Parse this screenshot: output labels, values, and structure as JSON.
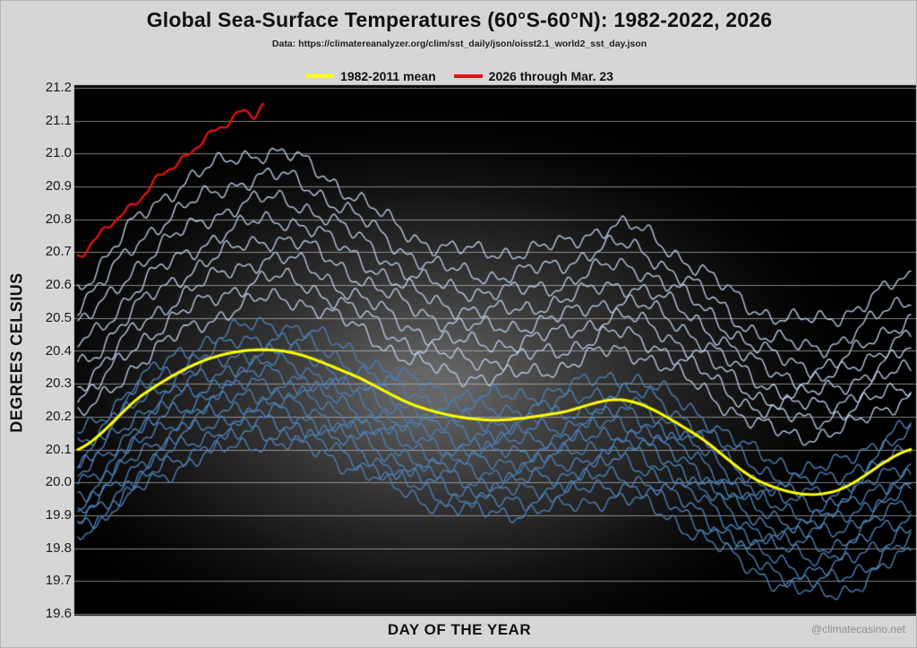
{
  "chart_data": {
    "type": "line",
    "title": "Global Sea-Surface Temperatures (60°S-60°N): 1982-2022, 2026",
    "subtitle": "Data: https://climatereanalyzer.org/clim/sst_daily/json/oisst2.1_world2_sst_day.json",
    "xlabel": "DAY OF THE YEAR",
    "ylabel": "DEGREES CELSIUS",
    "watermark": "@climatecasino.net",
    "ylim": [
      19.6,
      21.2
    ],
    "ytick_step": 0.1,
    "xlim": [
      1,
      365
    ],
    "grid": "horizontal",
    "legend_position": "top-center",
    "colors": {
      "mean": "#ffff00",
      "current": "#dd1111",
      "year_dark": "#4d7fb3",
      "year_light": "#b6c7df",
      "gridline": "#bdbdbd",
      "plot_background": "#000000",
      "plot_glow": "#787878",
      "page_background": "#d6d6d6"
    },
    "legend": [
      {
        "label": "1982-2011 mean",
        "color": "#ffff00"
      },
      {
        "label": "2026 through Mar. 23",
        "color": "#dd1111"
      }
    ],
    "keypoint_days": [
      1,
      30,
      60,
      90,
      120,
      150,
      180,
      210,
      240,
      270,
      300,
      330,
      365
    ],
    "series": [
      {
        "name": "1982-2011 mean",
        "role": "mean",
        "color": "#ffff00",
        "line_width": 3,
        "values": [
          20.1,
          20.27,
          20.38,
          20.4,
          20.33,
          20.23,
          20.19,
          20.21,
          20.25,
          20.15,
          20.0,
          19.97,
          20.1
        ]
      },
      {
        "name": "2026 through Mar. 23",
        "role": "current",
        "color": "#dd1111",
        "line_width": 2.4,
        "days": [
          1,
          8,
          15,
          22,
          29,
          36,
          43,
          50,
          57,
          64,
          71,
          78,
          82
        ],
        "values": [
          20.68,
          20.73,
          20.79,
          20.83,
          20.87,
          20.92,
          20.96,
          21.0,
          21.06,
          21.08,
          21.12,
          21.11,
          21.15
        ]
      },
      {
        "name": "year-line-01",
        "role": "year",
        "shade": "light",
        "color": "#b6c7df",
        "line_width": 1.4,
        "values": [
          20.6,
          20.82,
          20.96,
          21.0,
          20.88,
          20.74,
          20.7,
          20.72,
          20.78,
          20.66,
          20.52,
          20.5,
          20.62
        ]
      },
      {
        "name": "year-line-02",
        "role": "year",
        "shade": "light",
        "color": "#b6c7df",
        "line_width": 1.4,
        "values": [
          20.54,
          20.75,
          20.88,
          20.93,
          20.82,
          20.68,
          20.63,
          20.66,
          20.72,
          20.6,
          20.45,
          20.42,
          20.56
        ]
      },
      {
        "name": "year-line-03",
        "role": "year",
        "shade": "light",
        "color": "#b6c7df",
        "line_width": 1.4,
        "values": [
          20.48,
          20.68,
          20.81,
          20.86,
          20.76,
          20.62,
          20.58,
          20.6,
          20.66,
          20.55,
          20.4,
          20.36,
          20.5
        ]
      },
      {
        "name": "year-line-04",
        "role": "year",
        "shade": "light",
        "color": "#b6c7df",
        "line_width": 1.4,
        "values": [
          20.42,
          20.61,
          20.74,
          20.8,
          20.7,
          20.57,
          20.52,
          20.55,
          20.6,
          20.5,
          20.35,
          20.32,
          20.45
        ]
      },
      {
        "name": "year-line-05",
        "role": "year",
        "shade": "light",
        "color": "#b6c7df",
        "line_width": 1.4,
        "values": [
          20.36,
          20.55,
          20.68,
          20.74,
          20.64,
          20.52,
          20.47,
          20.5,
          20.55,
          20.45,
          20.3,
          20.28,
          20.4
        ]
      },
      {
        "name": "year-line-06",
        "role": "year",
        "shade": "light",
        "color": "#b6c7df",
        "line_width": 1.4,
        "values": [
          20.3,
          20.49,
          20.62,
          20.68,
          20.58,
          20.46,
          20.42,
          20.45,
          20.5,
          20.4,
          20.26,
          20.24,
          20.35
        ]
      },
      {
        "name": "year-line-07",
        "role": "year",
        "shade": "light",
        "color": "#b6c7df",
        "line_width": 1.4,
        "values": [
          20.25,
          20.44,
          20.56,
          20.62,
          20.53,
          20.41,
          20.37,
          20.4,
          20.45,
          20.35,
          20.22,
          20.2,
          20.3
        ]
      },
      {
        "name": "year-line-08",
        "role": "year",
        "shade": "light",
        "color": "#b6c7df",
        "line_width": 1.4,
        "values": [
          20.2,
          20.38,
          20.5,
          20.56,
          20.48,
          20.36,
          20.32,
          20.35,
          20.4,
          20.3,
          20.17,
          20.15,
          20.26
        ]
      },
      {
        "name": "year-line-09",
        "role": "year",
        "shade": "dark",
        "color": "#4d7fb3",
        "line_width": 1.4,
        "values": [
          20.15,
          20.32,
          20.44,
          20.48,
          20.4,
          20.3,
          20.26,
          20.28,
          20.32,
          20.22,
          20.08,
          20.05,
          20.18
        ]
      },
      {
        "name": "year-line-10",
        "role": "year",
        "shade": "dark",
        "color": "#4d7fb3",
        "line_width": 1.4,
        "values": [
          20.12,
          20.29,
          20.4,
          20.44,
          20.36,
          20.26,
          20.22,
          20.24,
          20.28,
          20.18,
          20.04,
          20.01,
          20.14
        ]
      },
      {
        "name": "year-line-11",
        "role": "year",
        "shade": "dark",
        "color": "#4d7fb3",
        "line_width": 1.4,
        "values": [
          20.08,
          20.26,
          20.36,
          20.4,
          20.32,
          20.22,
          20.18,
          20.2,
          20.24,
          20.14,
          20.0,
          19.97,
          20.1
        ]
      },
      {
        "name": "year-line-12",
        "role": "year",
        "shade": "dark",
        "color": "#4d7fb3",
        "line_width": 1.4,
        "values": [
          20.05,
          20.22,
          20.33,
          20.36,
          20.29,
          20.19,
          20.15,
          20.17,
          20.21,
          20.11,
          19.97,
          19.94,
          20.06
        ]
      },
      {
        "name": "year-line-13",
        "role": "year",
        "shade": "dark",
        "color": "#4d7fb3",
        "line_width": 1.4,
        "values": [
          20.02,
          20.19,
          20.3,
          20.33,
          20.26,
          20.16,
          20.12,
          20.14,
          20.18,
          20.08,
          19.94,
          19.91,
          20.03
        ]
      },
      {
        "name": "year-line-14",
        "role": "year",
        "shade": "dark",
        "color": "#4d7fb3",
        "line_width": 1.4,
        "values": [
          19.99,
          20.16,
          20.27,
          20.3,
          20.23,
          20.13,
          20.09,
          20.11,
          20.15,
          20.05,
          19.91,
          19.88,
          20.0
        ]
      },
      {
        "name": "year-line-15",
        "role": "year",
        "shade": "dark",
        "color": "#4d7fb3",
        "line_width": 1.4,
        "values": [
          19.96,
          20.13,
          20.24,
          20.27,
          20.2,
          20.1,
          20.06,
          20.08,
          20.12,
          20.02,
          19.88,
          19.85,
          19.97
        ]
      },
      {
        "name": "year-line-16",
        "role": "year",
        "shade": "dark",
        "color": "#4d7fb3",
        "line_width": 1.4,
        "values": [
          19.93,
          20.1,
          20.21,
          20.24,
          20.17,
          20.07,
          20.03,
          20.05,
          20.09,
          19.99,
          19.85,
          19.81,
          19.94
        ]
      },
      {
        "name": "year-line-17",
        "role": "year",
        "shade": "dark",
        "color": "#4d7fb3",
        "line_width": 1.4,
        "values": [
          19.9,
          20.07,
          20.18,
          20.21,
          20.14,
          20.04,
          20.0,
          20.02,
          20.06,
          19.96,
          19.82,
          19.78,
          19.9
        ]
      },
      {
        "name": "year-line-18",
        "role": "year",
        "shade": "dark",
        "color": "#4d7fb3",
        "line_width": 1.4,
        "values": [
          19.88,
          20.04,
          20.15,
          20.18,
          20.11,
          20.01,
          19.97,
          19.99,
          20.02,
          19.92,
          19.78,
          19.74,
          19.86
        ]
      },
      {
        "name": "year-line-19",
        "role": "year",
        "shade": "dark",
        "color": "#4d7fb3",
        "line_width": 1.4,
        "values": [
          19.86,
          20.01,
          20.12,
          20.15,
          20.08,
          19.98,
          19.94,
          19.96,
          19.99,
          19.89,
          19.75,
          19.7,
          19.82
        ]
      },
      {
        "name": "year-line-20",
        "role": "year",
        "shade": "dark",
        "color": "#4d7fb3",
        "line_width": 1.4,
        "values": [
          19.85,
          19.99,
          20.09,
          20.12,
          20.05,
          19.95,
          19.91,
          19.92,
          19.95,
          19.85,
          19.72,
          19.66,
          19.78
        ]
      }
    ]
  }
}
